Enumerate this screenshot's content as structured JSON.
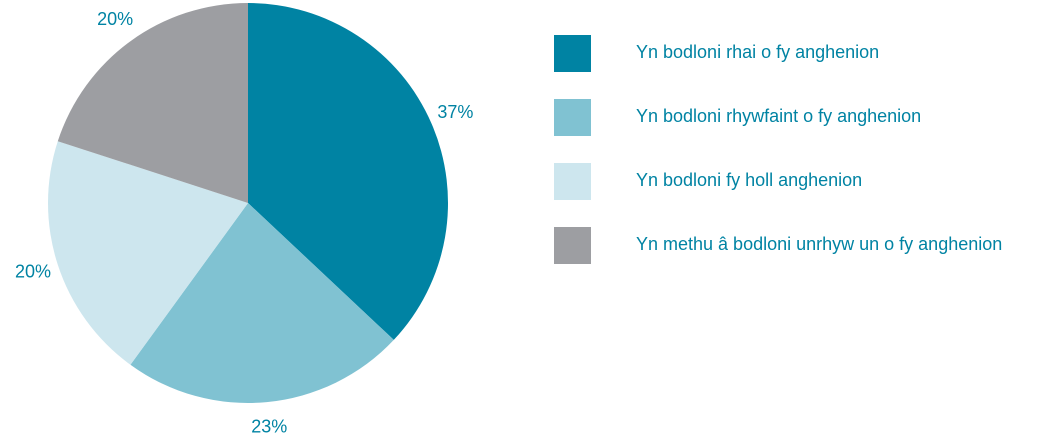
{
  "chart_data": {
    "type": "pie",
    "categories": [
      "Yn bodloni rhai o fy anghenion",
      "Yn bodloni rhywfaint o fy anghenion",
      "Yn bodloni fy holl anghenion",
      "Yn methu â bodloni unrhyw un o fy anghenion"
    ],
    "values": [
      37,
      23,
      20,
      20
    ],
    "value_labels": [
      "37%",
      "23%",
      "20%",
      "20%"
    ],
    "colors": [
      "#0083a3",
      "#80c2d2",
      "#cde6ee",
      "#9d9ea2"
    ],
    "legend": "right"
  }
}
